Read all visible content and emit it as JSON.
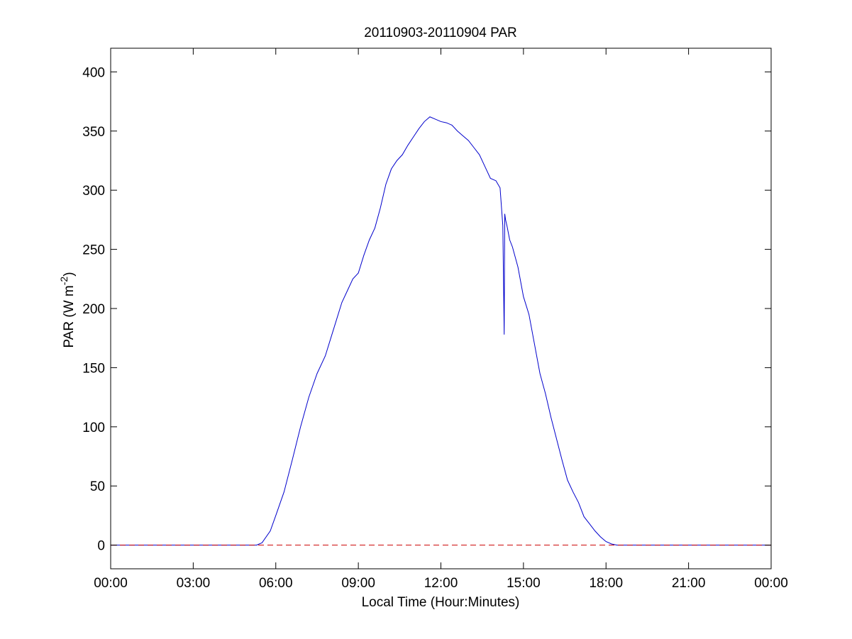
{
  "chart_data": {
    "type": "line",
    "title": "20110903-20110904 PAR",
    "xlabel": "Local Time (Hour:Minutes)",
    "ylabel": {
      "prefix": "PAR (W m",
      "superscript": "-2",
      "suffix": ")"
    },
    "xlim": [
      0,
      24
    ],
    "ylim": [
      -20,
      420
    ],
    "x_ticks": [
      {
        "value": 0,
        "label": "00:00"
      },
      {
        "value": 3,
        "label": "03:00"
      },
      {
        "value": 6,
        "label": "06:00"
      },
      {
        "value": 9,
        "label": "09:00"
      },
      {
        "value": 12,
        "label": "12:00"
      },
      {
        "value": 15,
        "label": "15:00"
      },
      {
        "value": 18,
        "label": "18:00"
      },
      {
        "value": 21,
        "label": "21:00"
      },
      {
        "value": 24,
        "label": "00:00"
      }
    ],
    "y_ticks": [
      0,
      50,
      100,
      150,
      200,
      250,
      300,
      350,
      400
    ],
    "grid": false,
    "series": [
      {
        "color": "#0000cc",
        "line_style": "solid",
        "x": [
          0,
          5.3,
          5.5,
          5.8,
          6.0,
          6.3,
          6.6,
          6.9,
          7.2,
          7.5,
          7.8,
          8.0,
          8.2,
          8.4,
          8.6,
          8.8,
          9.0,
          9.2,
          9.4,
          9.6,
          9.8,
          10.0,
          10.2,
          10.4,
          10.6,
          10.8,
          11.0,
          11.2,
          11.4,
          11.6,
          11.8,
          12.0,
          12.2,
          12.4,
          12.6,
          12.8,
          13.0,
          13.2,
          13.4,
          13.6,
          13.8,
          14.0,
          14.15,
          14.25,
          14.3,
          14.32,
          14.35,
          14.4,
          14.5,
          14.6,
          14.8,
          15.0,
          15.2,
          15.4,
          15.6,
          15.8,
          16.0,
          16.2,
          16.4,
          16.6,
          16.8,
          17.0,
          17.05,
          17.1,
          17.2,
          17.4,
          17.6,
          17.8,
          18.0,
          18.2,
          18.4,
          18.6,
          24
        ],
        "y": [
          0,
          0,
          2,
          12,
          25,
          45,
          72,
          100,
          125,
          145,
          160,
          175,
          190,
          205,
          215,
          225,
          230,
          245,
          258,
          268,
          285,
          305,
          318,
          325,
          330,
          338,
          345,
          352,
          358,
          362,
          360,
          358,
          357,
          355,
          350,
          346,
          342,
          336,
          330,
          320,
          310,
          308,
          302,
          270,
          178,
          280,
          275,
          270,
          258,
          252,
          235,
          210,
          195,
          170,
          145,
          128,
          108,
          90,
          72,
          55,
          45,
          36,
          33,
          30,
          24,
          18,
          12,
          7,
          3,
          1,
          0,
          0,
          0
        ]
      },
      {
        "color": "#cc0000",
        "line_style": "dashed",
        "x": [
          0,
          24
        ],
        "y": [
          0,
          0
        ]
      }
    ]
  }
}
